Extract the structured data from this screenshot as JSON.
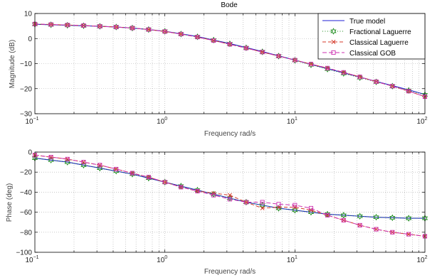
{
  "figure_title": "Bode",
  "colors": {
    "true_model": "#1f1fd6",
    "fractional_laguerre": "#1a8a1a",
    "classical_laguerre": "#d43a2a",
    "classical_gob": "#cc2fb0"
  },
  "chart_data": [
    {
      "type": "line",
      "title": "Bode",
      "xlabel": "Frequency rad/s",
      "ylabel": "Magnitude (dB)",
      "xscale": "log",
      "xlim": [
        0.1,
        100
      ],
      "ylim": [
        -30,
        10
      ],
      "yticks": [
        10,
        0,
        -10,
        -20,
        -30
      ],
      "xtick_labels": [
        {
          "base": "10",
          "exp": "−1"
        },
        {
          "base": "10",
          "exp": "0"
        },
        {
          "base": "10",
          "exp": "1"
        },
        {
          "base": "10",
          "exp": "2"
        }
      ],
      "grid": true,
      "legend_position": "top-right",
      "x": [
        0.1,
        0.133,
        0.178,
        0.237,
        0.316,
        0.422,
        0.562,
        0.75,
        1.0,
        1.33,
        1.78,
        2.37,
        3.16,
        4.22,
        5.62,
        7.5,
        10.0,
        13.3,
        17.8,
        23.7,
        31.6,
        42.2,
        56.2,
        75.0,
        100.0
      ],
      "series": [
        {
          "name": "True model",
          "values": [
            5.7,
            5.5,
            5.3,
            5.1,
            4.9,
            4.6,
            4.2,
            3.6,
            2.9,
            1.9,
            0.8,
            -0.6,
            -2.0,
            -3.6,
            -5.2,
            -6.9,
            -8.6,
            -10.3,
            -12.0,
            -13.7,
            -15.4,
            -17.1,
            -18.8,
            -20.5,
            -22.3
          ]
        },
        {
          "name": "Fractional Laguerre",
          "values": [
            5.7,
            5.5,
            5.3,
            5.1,
            4.9,
            4.6,
            4.2,
            3.6,
            2.9,
            1.8,
            0.7,
            -0.6,
            -2.1,
            -3.7,
            -5.3,
            -7.0,
            -8.7,
            -10.5,
            -12.2,
            -13.9,
            -15.6,
            -17.3,
            -19.0,
            -20.7,
            -22.5
          ]
        },
        {
          "name": "Classical Laguerre",
          "values": [
            5.8,
            5.6,
            5.4,
            5.2,
            4.9,
            4.6,
            4.2,
            3.6,
            2.8,
            1.8,
            0.6,
            -0.8,
            -2.3,
            -3.8,
            -5.4,
            -7.0,
            -8.6,
            -10.2,
            -11.8,
            -13.5,
            -15.3,
            -17.2,
            -19.0,
            -21.0,
            -23.2
          ]
        },
        {
          "name": "Classical GOB",
          "values": [
            5.8,
            5.6,
            5.4,
            5.2,
            4.9,
            4.6,
            4.2,
            3.6,
            2.8,
            1.8,
            0.6,
            -0.8,
            -2.3,
            -3.8,
            -5.4,
            -7.0,
            -8.6,
            -10.2,
            -11.8,
            -13.5,
            -15.3,
            -17.2,
            -19.0,
            -21.0,
            -23.2
          ]
        }
      ]
    },
    {
      "type": "line",
      "xlabel": "Frequency rad/s",
      "ylabel": "Phase (deg)",
      "xscale": "log",
      "xlim": [
        0.1,
        100
      ],
      "ylim": [
        -100,
        0
      ],
      "yticks": [
        0,
        -20,
        -40,
        -60,
        -80,
        -100
      ],
      "xtick_labels": [
        {
          "base": "10",
          "exp": "−1"
        },
        {
          "base": "10",
          "exp": "0"
        },
        {
          "base": "10",
          "exp": "1"
        },
        {
          "base": "10",
          "exp": "2"
        }
      ],
      "grid": true,
      "x": [
        0.1,
        0.133,
        0.178,
        0.237,
        0.316,
        0.422,
        0.562,
        0.75,
        1.0,
        1.33,
        1.78,
        2.37,
        3.16,
        4.22,
        5.62,
        7.5,
        10.0,
        13.3,
        17.8,
        23.7,
        31.6,
        42.2,
        56.2,
        75.0,
        100.0
      ],
      "series": [
        {
          "name": "True model",
          "values": [
            -6,
            -8,
            -10,
            -13,
            -16,
            -19,
            -22,
            -26,
            -30,
            -34,
            -38,
            -42,
            -46,
            -50,
            -53,
            -56,
            -58,
            -60,
            -62,
            -63,
            -64,
            -65,
            -65.5,
            -66,
            -66
          ]
        },
        {
          "name": "Fractional Laguerre",
          "values": [
            -6,
            -8,
            -10,
            -13,
            -16,
            -19,
            -22,
            -26,
            -30,
            -34,
            -38,
            -42,
            -46,
            -50,
            -53,
            -56,
            -58,
            -60,
            -62,
            -63,
            -64,
            -65,
            -65.5,
            -66,
            -66
          ]
        },
        {
          "name": "Classical Laguerre",
          "values": [
            -3,
            -5,
            -7,
            -10,
            -13,
            -17,
            -21,
            -25,
            -30,
            -35,
            -39,
            -41,
            -43,
            -50,
            -56,
            -55,
            -55,
            -58,
            -63,
            -68,
            -73,
            -77,
            -80,
            -82,
            -84
          ]
        },
        {
          "name": "Classical GOB",
          "values": [
            -3,
            -5,
            -7,
            -10,
            -13,
            -17,
            -21,
            -25,
            -30,
            -35,
            -39,
            -43,
            -47,
            -50,
            -50,
            -52,
            -53,
            -56,
            -63,
            -68,
            -73,
            -77,
            -80,
            -82,
            -84
          ]
        }
      ]
    }
  ]
}
